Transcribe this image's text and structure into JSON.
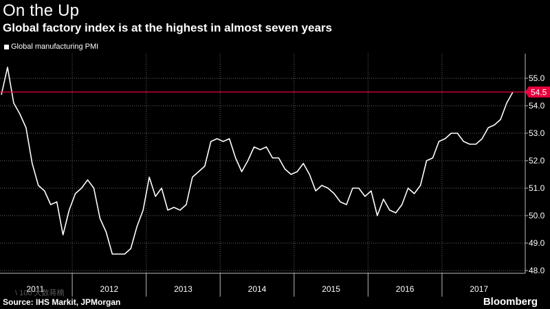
{
  "title": "On the Up",
  "subtitle": "Global factory index is at the highest in almost seven years",
  "source": "Source: IHS Markit, JPMorgan",
  "brand": "Bloomberg",
  "watermark": "\\ 100 大数蒋楠",
  "colors": {
    "background": "#000000",
    "line": "#ffffff",
    "highlight": "#e8003d",
    "grid": "#6a6a6a"
  },
  "chart_data": {
    "type": "line",
    "title": "On the Up",
    "subtitle": "Global factory index is at the highest in almost seven years",
    "xlabel": "",
    "ylabel": "",
    "legend": "top-left",
    "grid": true,
    "ylim": [
      47.9,
      55.9
    ],
    "y_ticks": [
      "48.0",
      "49.0",
      "50.0",
      "51.0",
      "52.0",
      "53.0",
      "54.0",
      "55.0"
    ],
    "x_ticks": [
      "2011",
      "2012",
      "2013",
      "2014",
      "2015",
      "2016",
      "2017"
    ],
    "x_start": "2011-01",
    "series": [
      {
        "name": "Global manufacturing PMI",
        "values": [
          54.4,
          55.4,
          54.1,
          53.7,
          53.2,
          51.9,
          51.1,
          50.9,
          50.4,
          50.5,
          49.3,
          50.2,
          50.8,
          51.0,
          51.3,
          51.0,
          49.9,
          49.4,
          48.6,
          48.6,
          48.6,
          48.8,
          49.6,
          50.2,
          51.4,
          50.7,
          51.0,
          50.2,
          50.3,
          50.2,
          50.4,
          51.4,
          51.6,
          51.8,
          52.7,
          52.8,
          52.7,
          52.8,
          52.1,
          51.6,
          52.0,
          52.5,
          52.4,
          52.5,
          52.1,
          52.1,
          51.7,
          51.5,
          51.6,
          51.9,
          51.5,
          50.9,
          51.1,
          51.0,
          50.8,
          50.5,
          50.4,
          51.0,
          51.0,
          50.7,
          50.9,
          50.0,
          50.6,
          50.2,
          50.1,
          50.4,
          51.0,
          50.8,
          51.1,
          52.0,
          52.1,
          52.7,
          52.8,
          53.0,
          53.0,
          52.7,
          52.6,
          52.6,
          52.8,
          53.2,
          53.3,
          53.5,
          54.1,
          54.5
        ]
      }
    ],
    "reference_line": {
      "value": 54.5,
      "label": "54.5"
    }
  }
}
